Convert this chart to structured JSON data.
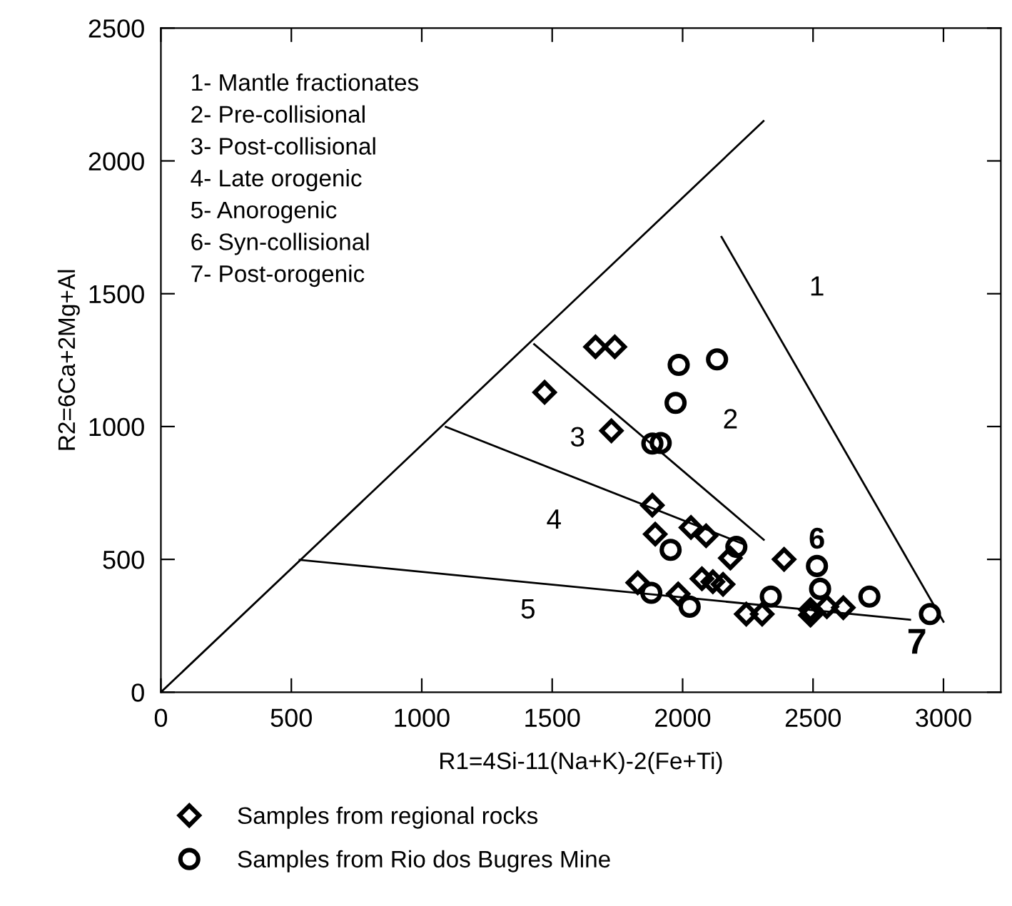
{
  "chart_data": {
    "type": "scatter",
    "xlabel": "R1=4Si-11(Na+K)-2(Fe+Ti)",
    "ylabel": "R2=6Ca+2Mg+Al",
    "xlim": [
      0,
      3220
    ],
    "ylim": [
      0,
      2500
    ],
    "xticks": [
      0,
      500,
      1000,
      1500,
      2000,
      2500,
      3000
    ],
    "yticks": [
      0,
      500,
      1000,
      1500,
      2000,
      2500
    ],
    "grid": false,
    "legend": "bottom",
    "series": [
      {
        "name": "Samples from regional rocks",
        "color": "#000000",
        "marker": "diamond",
        "x": [
          1666,
          1740,
          1471,
          1727,
          1884,
          1895,
          2032,
          2090,
          2183,
          2389,
          1828,
          2074,
          2116,
          2155,
          1983,
          2244,
          2305,
          2490,
          2490,
          2553,
          2616
        ],
        "values": [
          1300,
          1300,
          1129,
          984,
          704,
          595,
          620,
          589,
          505,
          500,
          412,
          427,
          416,
          406,
          370,
          294,
          294,
          311,
          290,
          322,
          318
        ]
      },
      {
        "name": "Samples from Rio dos Bugres Mine",
        "color": "#000000",
        "marker": "circle",
        "x": [
          1985,
          2132,
          1973,
          1884,
          1916,
          1954,
          2206,
          1880,
          2027,
          2338,
          2515,
          2527,
          2716,
          2948
        ],
        "values": [
          1232,
          1253,
          1089,
          936,
          938,
          536,
          547,
          374,
          322,
          360,
          475,
          389,
          360,
          294
        ]
      },
      {
        "type": "line",
        "color": "#000000",
        "x": [
          0,
          2310
        ],
        "values": [
          0,
          2150
        ]
      },
      {
        "type": "line",
        "color": "#000000",
        "x": [
          2149,
          3000
        ],
        "values": [
          1714,
          265
        ]
      },
      {
        "type": "line",
        "color": "#000000",
        "x": [
          1431,
          2311
        ],
        "values": [
          1310,
          574
        ]
      },
      {
        "type": "line",
        "color": "#000000",
        "x": [
          1092,
          2240
        ],
        "values": [
          999,
          555
        ]
      },
      {
        "type": "line",
        "color": "#000000",
        "x": [
          532,
          2872
        ],
        "values": [
          498,
          273
        ]
      }
    ],
    "annotations": [
      "1- Mantle fractionates",
      "2- Pre-collisional",
      "3- Post-collisional",
      "4- Late orogenic",
      "5- Anorogenic",
      "6- Syn-collisional",
      "7- Post-orogenic",
      "1",
      "2",
      "3",
      "4",
      "5",
      "6",
      "7"
    ]
  }
}
